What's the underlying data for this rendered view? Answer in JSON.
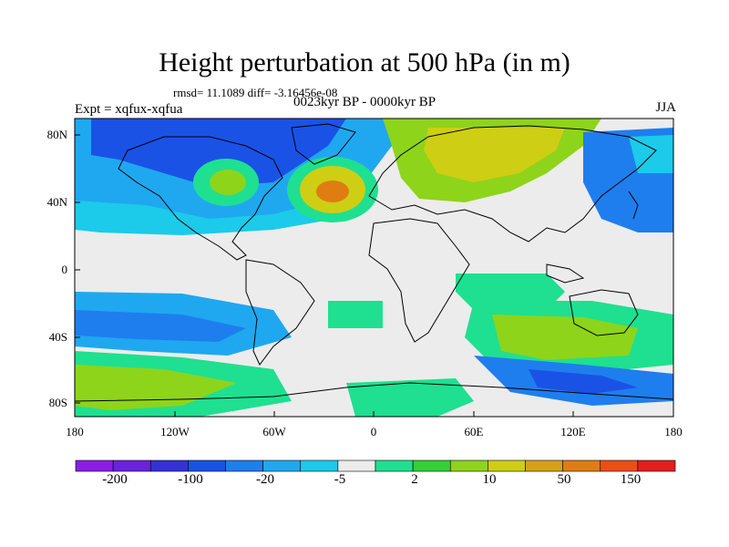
{
  "title": "Height perturbation at 500 hPa (in m)",
  "stats": "rmsd= 11.1089  diff= -3.16456e-08",
  "experiment": "Expt = xqfux-xqfua",
  "period": "0023kyr BP - 0000kyr BP",
  "season": "JJA",
  "lat_labels": [
    "80N",
    "40N",
    "0",
    "40S",
    "80S"
  ],
  "lon_labels": [
    "180",
    "120W",
    "60W",
    "0",
    "60E",
    "120E",
    "180"
  ],
  "colorbar": {
    "colors": [
      "#8a1ee6",
      "#6a22e0",
      "#3530d8",
      "#1a52e6",
      "#1e7eee",
      "#1fa8f0",
      "#1ccaea",
      "#ececec",
      "#1ee090",
      "#34d03a",
      "#8ed41a",
      "#cece14",
      "#d4a214",
      "#e07d12",
      "#ec4e16",
      "#e41e1e"
    ],
    "labels": [
      "-200",
      "-100",
      "-20",
      "-5",
      "2",
      "10",
      "50",
      "150"
    ]
  },
  "colors": {
    "neutral": "#ececec",
    "light_blue": "#1ccaea",
    "mid_blue": "#1fa8f0",
    "blue": "#1e7eee",
    "dark_blue": "#1a52e6",
    "green": "#1ee090",
    "yellow_green": "#8ed41a",
    "olive": "#cece14",
    "orange": "#e07d12"
  }
}
